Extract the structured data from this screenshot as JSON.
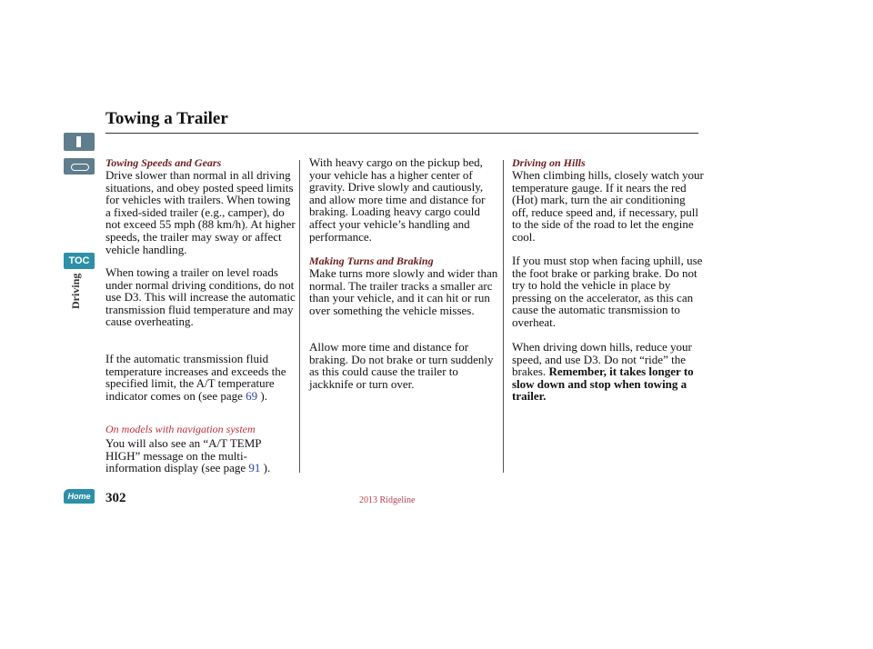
{
  "header": {
    "title": "Towing a Trailer"
  },
  "sidebar": {
    "toc": "TOC",
    "section": "Driving",
    "home": "Home"
  },
  "columns": [
    {
      "heading": "Towing Speeds and Gears",
      "paragraphs": [
        "Drive slower than normal in all driving situations, and obey posted speed limits for vehicles with trailers. When towing a fixed-sided trailer (e.g., camper), do not exceed 55 mph (88 km/h). At higher speeds, the trailer may sway or affect vehicle handling.",
        "When towing a trailer on level roads under normal driving conditions, do not use D3. This will increase the automatic transmission fluid temperature and may cause overheating.",
        {
          "text": "If the automatic transmission fluid temperature increases and exceeds the specified limit, the A/T temperature indicator comes on (see page",
          "link": "69",
          "after": ")."
        }
      ],
      "note": "On models with navigation system",
      "note_paragraph": {
        "text": "You will also see an “A/T TEMP HIGH” message on the multi-information display (see page",
        "link": "91",
        "after": ")."
      }
    },
    {
      "intro": "With heavy cargo on the pickup bed, your vehicle has a higher center of gravity. Drive slowly and cautiously, and allow more time and distance for braking. Loading heavy cargo could affect your vehicle’s handling and performance.",
      "heading": "Making Turns and Braking",
      "paragraphs": [
        "Make turns more slowly and wider than normal. The trailer tracks a smaller arc than your vehicle, and it can hit or run over something the vehicle misses.",
        "Allow more time and distance for braking. Do not brake or turn suddenly as this could cause the trailer to jackknife or turn over."
      ]
    },
    {
      "heading": "Driving on Hills",
      "paragraphs": [
        "When climbing hills, closely watch your temperature gauge. If it nears the red (Hot) mark, turn the air conditioning off, reduce speed and, if necessary, pull to the side of the road to let the engine cool.",
        "If you must stop when facing uphill, use the foot brake or parking brake. Do not try to hold the vehicle in place by pressing on the accelerator, as this can cause the automatic transmission to overheat.",
        {
          "text": "When driving down hills, reduce your speed, and use D3. Do not “ride” the brakes.",
          "bold": "Remember, it takes longer to slow down and stop when towing a trailer."
        }
      ]
    }
  ],
  "footer": {
    "page": "302",
    "model": "2013 Ridgeline"
  }
}
